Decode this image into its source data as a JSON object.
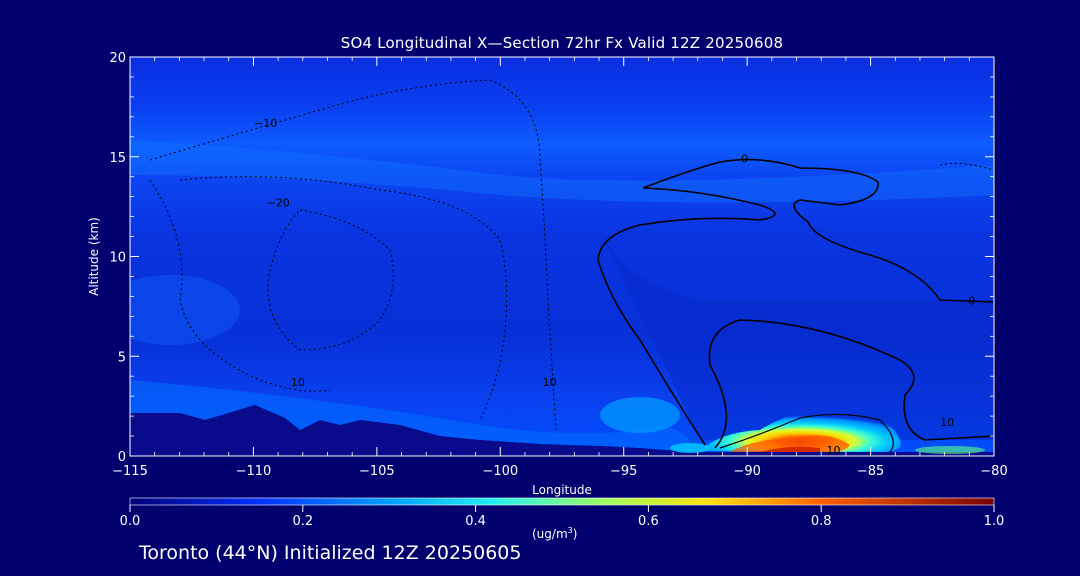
{
  "chart_data": {
    "type": "heatmap",
    "title": "SO4 Longitudinal X—Section 72hr  Fx Valid 12Z 20250608",
    "xlabel": "Longitude",
    "ylabel": "Altitude (km)",
    "xlim": [
      -115,
      -80
    ],
    "ylim": [
      0,
      20
    ],
    "x_ticks": [
      -115,
      -110,
      -105,
      -100,
      -95,
      -90,
      -85,
      -80
    ],
    "x_tick_labels": [
      "−115",
      "−110",
      "−105",
      "−100",
      "−95",
      "−90",
      "−85",
      "−80"
    ],
    "y_ticks": [
      0,
      5,
      10,
      15,
      20
    ],
    "y_tick_labels": [
      "0",
      "5",
      "10",
      "15",
      "20"
    ],
    "colorbar": {
      "ticks": [
        0.0,
        0.2,
        0.4,
        0.6,
        0.8,
        1.0
      ],
      "tick_labels": [
        "0.0",
        "0.2",
        "0.4",
        "0.6",
        "0.8",
        "1.0"
      ],
      "units_base": "(ug/m",
      "units_exp": "3",
      "units_close": ")"
    },
    "contour_labels": [
      {
        "text": "−10",
        "lon": -109.5,
        "alt": 16.7
      },
      {
        "text": "−20",
        "lon": -109.0,
        "alt": 12.7
      },
      {
        "text": "0",
        "lon": -90.1,
        "alt": 14.9
      },
      {
        "text": "0",
        "lon": -80.9,
        "alt": 7.8
      },
      {
        "text": "10",
        "lon": -108.2,
        "alt": 3.7
      },
      {
        "text": "10",
        "lon": -98.0,
        "alt": 3.7
      },
      {
        "text": "10",
        "lon": -86.5,
        "alt": 0.3
      },
      {
        "text": "10",
        "lon": -81.9,
        "alt": 1.7
      }
    ],
    "concentration_features": [
      {
        "name": "plume core",
        "lon": -87.5,
        "alt": 0.5,
        "value": 0.85
      },
      {
        "name": "plume",
        "lon": -87.0,
        "alt": 1.3,
        "value": 0.4
      },
      {
        "name": "surface layer west",
        "lon": -105.0,
        "alt": 1.5,
        "value": 0.12
      },
      {
        "name": "upper layer",
        "lon": -100.0,
        "alt": 15.0,
        "value": 0.1
      }
    ]
  },
  "footer": "Toronto (44°N) Initialized 12Z 20250605"
}
